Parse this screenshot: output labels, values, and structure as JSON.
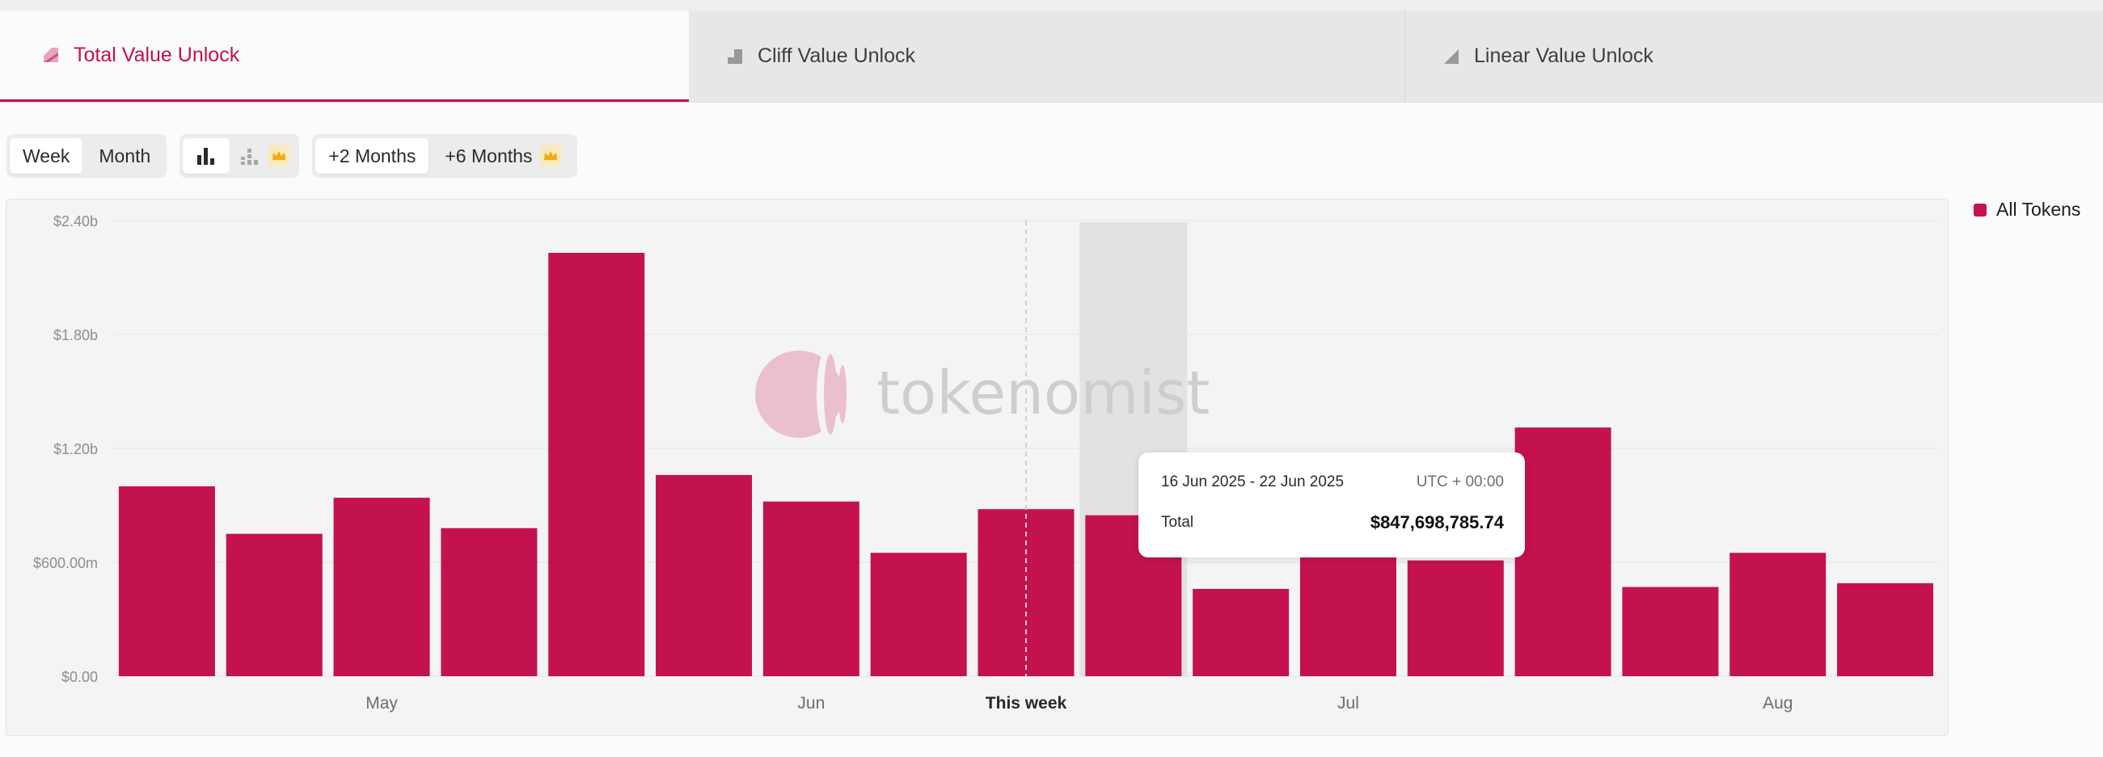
{
  "tabs": [
    {
      "label": "Total Value Unlock",
      "icon": "total-unlock-icon",
      "active": true
    },
    {
      "label": "Cliff Value Unlock",
      "icon": "cliff-unlock-icon",
      "active": false
    },
    {
      "label": "Linear Value Unlock",
      "icon": "linear-unlock-icon",
      "active": false
    }
  ],
  "controls": {
    "period": [
      "Week",
      "Month"
    ],
    "period_selected": "Week",
    "chart_types": [
      "bar-chart-icon",
      "stacked-chart-icon"
    ],
    "range_buttons": [
      "+2 Months",
      "+6 Months"
    ],
    "premium_icon": "crown-icon"
  },
  "colors": {
    "accent": "#c3124f",
    "bar": "#c3124f",
    "highlight": "#e3e1e2"
  },
  "legend": {
    "label": "All Tokens"
  },
  "watermark": "tokenomist",
  "tooltip": {
    "range": "16 Jun 2025 - 22 Jun 2025",
    "timezone": "UTC + 00:00",
    "total_label": "Total",
    "total_value": "$847,698,785.74"
  },
  "chart_data": {
    "type": "bar",
    "title": "",
    "xlabel": "",
    "ylabel": "",
    "ylim": [
      0,
      2400000000
    ],
    "yticks": [
      0,
      600000000,
      1200000000,
      1800000000,
      2400000000
    ],
    "ytick_labels": [
      "$0.00",
      "$600.00m",
      "$1.20b",
      "$1.80b",
      "$2.40b"
    ],
    "x_labels": [
      {
        "text": "May",
        "index": 2
      },
      {
        "text": "Jun",
        "index": 6
      },
      {
        "text": "This week",
        "index": 8,
        "bold": true
      },
      {
        "text": "Jul",
        "index": 11
      },
      {
        "text": "Aug",
        "index": 15
      }
    ],
    "current_week_index": 8,
    "hover_index": 9,
    "series": [
      {
        "name": "All Tokens",
        "values": [
          1000000000,
          750000000,
          940000000,
          780000000,
          2230000000,
          1060000000,
          920000000,
          650000000,
          880000000,
          847698785.74,
          460000000,
          690000000,
          610000000,
          1310000000,
          470000000,
          650000000,
          490000000
        ]
      }
    ]
  }
}
